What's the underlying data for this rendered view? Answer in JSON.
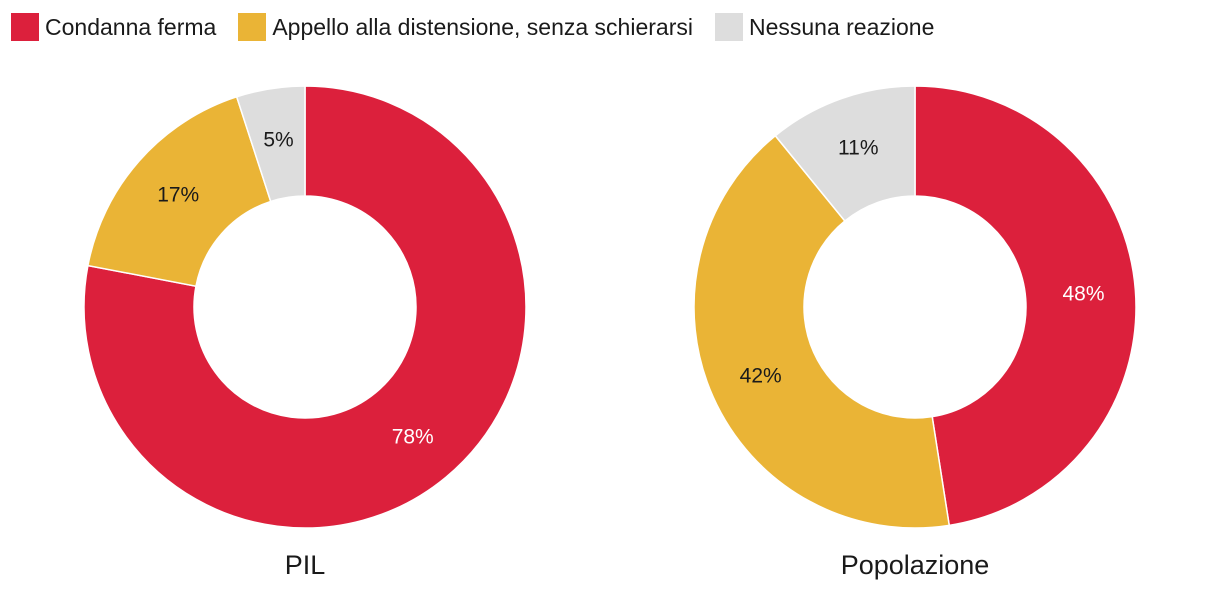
{
  "colors": {
    "condanna": "#dc203c",
    "appello": "#eab436",
    "nessuna": "#dddddd"
  },
  "legend": [
    {
      "label": "Condanna ferma",
      "color": "#dc203c"
    },
    {
      "label": "Appello alla distensione, senza schierarsi",
      "color": "#eab436"
    },
    {
      "label": "Nessuna reazione",
      "color": "#dddddd"
    }
  ],
  "chart_data": [
    {
      "type": "pie",
      "title": "PIL",
      "categories": [
        "Condanna ferma",
        "Appello alla distensione, senza schierarsi",
        "Nessuna reazione"
      ],
      "values": [
        78,
        17,
        5
      ],
      "labels": [
        "78%",
        "17%",
        "5%"
      ],
      "label_colors": [
        "#ffffff",
        "#1a1a1a",
        "#1a1a1a"
      ]
    },
    {
      "type": "pie",
      "title": "Popolazione",
      "categories": [
        "Condanna ferma",
        "Appello alla distensione, senza schierarsi",
        "Nessuna reazione"
      ],
      "values": [
        48,
        42,
        11
      ],
      "labels": [
        "48%",
        "42%",
        "11%"
      ],
      "label_colors": [
        "#ffffff",
        "#1a1a1a",
        "#1a1a1a"
      ]
    }
  ]
}
